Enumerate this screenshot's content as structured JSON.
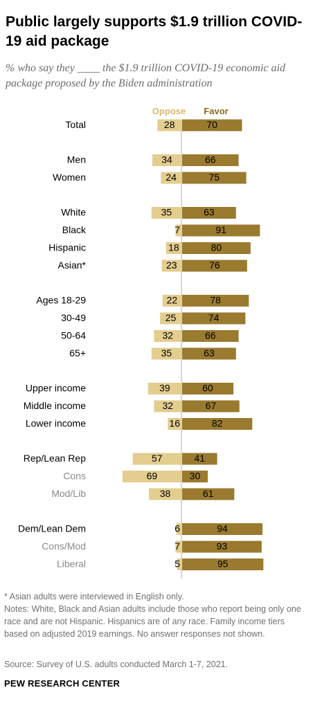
{
  "title": "Public largely supports $1.9 trillion COVID-19 aid package",
  "subtitle": "% who say they ____ the $1.9 trillion COVID-19 economic aid package proposed by the Biden administration",
  "chart_data": {
    "type": "bar",
    "orientation": "horizontal-diverging",
    "series": [
      {
        "name": "Oppose",
        "color": "#e3cd8f"
      },
      {
        "name": "Favor",
        "color": "#9a7a2f"
      }
    ],
    "rows": [
      {
        "label": "Total",
        "oppose": 28,
        "favor": 70,
        "sub": false,
        "gap": 0
      },
      {
        "label": "Men",
        "oppose": 34,
        "favor": 66,
        "sub": false,
        "gap": 1
      },
      {
        "label": "Women",
        "oppose": 24,
        "favor": 75,
        "sub": false,
        "gap": 0
      },
      {
        "label": "White",
        "oppose": 35,
        "favor": 63,
        "sub": false,
        "gap": 1
      },
      {
        "label": "Black",
        "oppose": 7,
        "favor": 91,
        "sub": false,
        "gap": 0
      },
      {
        "label": "Hispanic",
        "oppose": 18,
        "favor": 80,
        "sub": false,
        "gap": 0
      },
      {
        "label": "Asian*",
        "oppose": 23,
        "favor": 76,
        "sub": false,
        "gap": 0
      },
      {
        "label": "Ages 18-29",
        "oppose": 22,
        "favor": 78,
        "sub": false,
        "gap": 1
      },
      {
        "label": "30-49",
        "oppose": 25,
        "favor": 74,
        "sub": false,
        "gap": 0
      },
      {
        "label": "50-64",
        "oppose": 32,
        "favor": 66,
        "sub": false,
        "gap": 0
      },
      {
        "label": "65+",
        "oppose": 35,
        "favor": 63,
        "sub": false,
        "gap": 0
      },
      {
        "label": "Upper income",
        "oppose": 39,
        "favor": 60,
        "sub": false,
        "gap": 1
      },
      {
        "label": "Middle income",
        "oppose": 32,
        "favor": 67,
        "sub": false,
        "gap": 0
      },
      {
        "label": "Lower income",
        "oppose": 16,
        "favor": 82,
        "sub": false,
        "gap": 0
      },
      {
        "label": "Rep/Lean Rep",
        "oppose": 57,
        "favor": 41,
        "sub": false,
        "gap": 1
      },
      {
        "label": "Cons",
        "oppose": 69,
        "favor": 30,
        "sub": true,
        "gap": 0
      },
      {
        "label": "Mod/Lib",
        "oppose": 38,
        "favor": 61,
        "sub": true,
        "gap": 0
      },
      {
        "label": "Dem/Lean Dem",
        "oppose": 6,
        "favor": 94,
        "sub": false,
        "gap": 1
      },
      {
        "label": "Cons/Mod",
        "oppose": 7,
        "favor": 93,
        "sub": true,
        "gap": 0
      },
      {
        "label": "Liberal",
        "oppose": 5,
        "favor": 95,
        "sub": true,
        "gap": 0
      }
    ]
  },
  "notes": [
    "* Asian adults were interviewed in English only.",
    "Notes: White, Black and Asian adults include those who report being only one race and are not Hispanic. Hispanics are of any race. Family income tiers based on adjusted 2019 earnings. No answer responses not shown."
  ],
  "source": "Source: Survey of U.S. adults conducted March 1-7, 2021.",
  "brand": "PEW RESEARCH CENTER",
  "colors": {
    "oppose": "#e3cd8f",
    "favor": "#9a7a2f",
    "oppose_header": "#d9b96a",
    "favor_header": "#8a6a20",
    "axis": "#c9c9c9",
    "label": "#000000",
    "sublabel": "#8a8a8a",
    "note": "#707070"
  }
}
